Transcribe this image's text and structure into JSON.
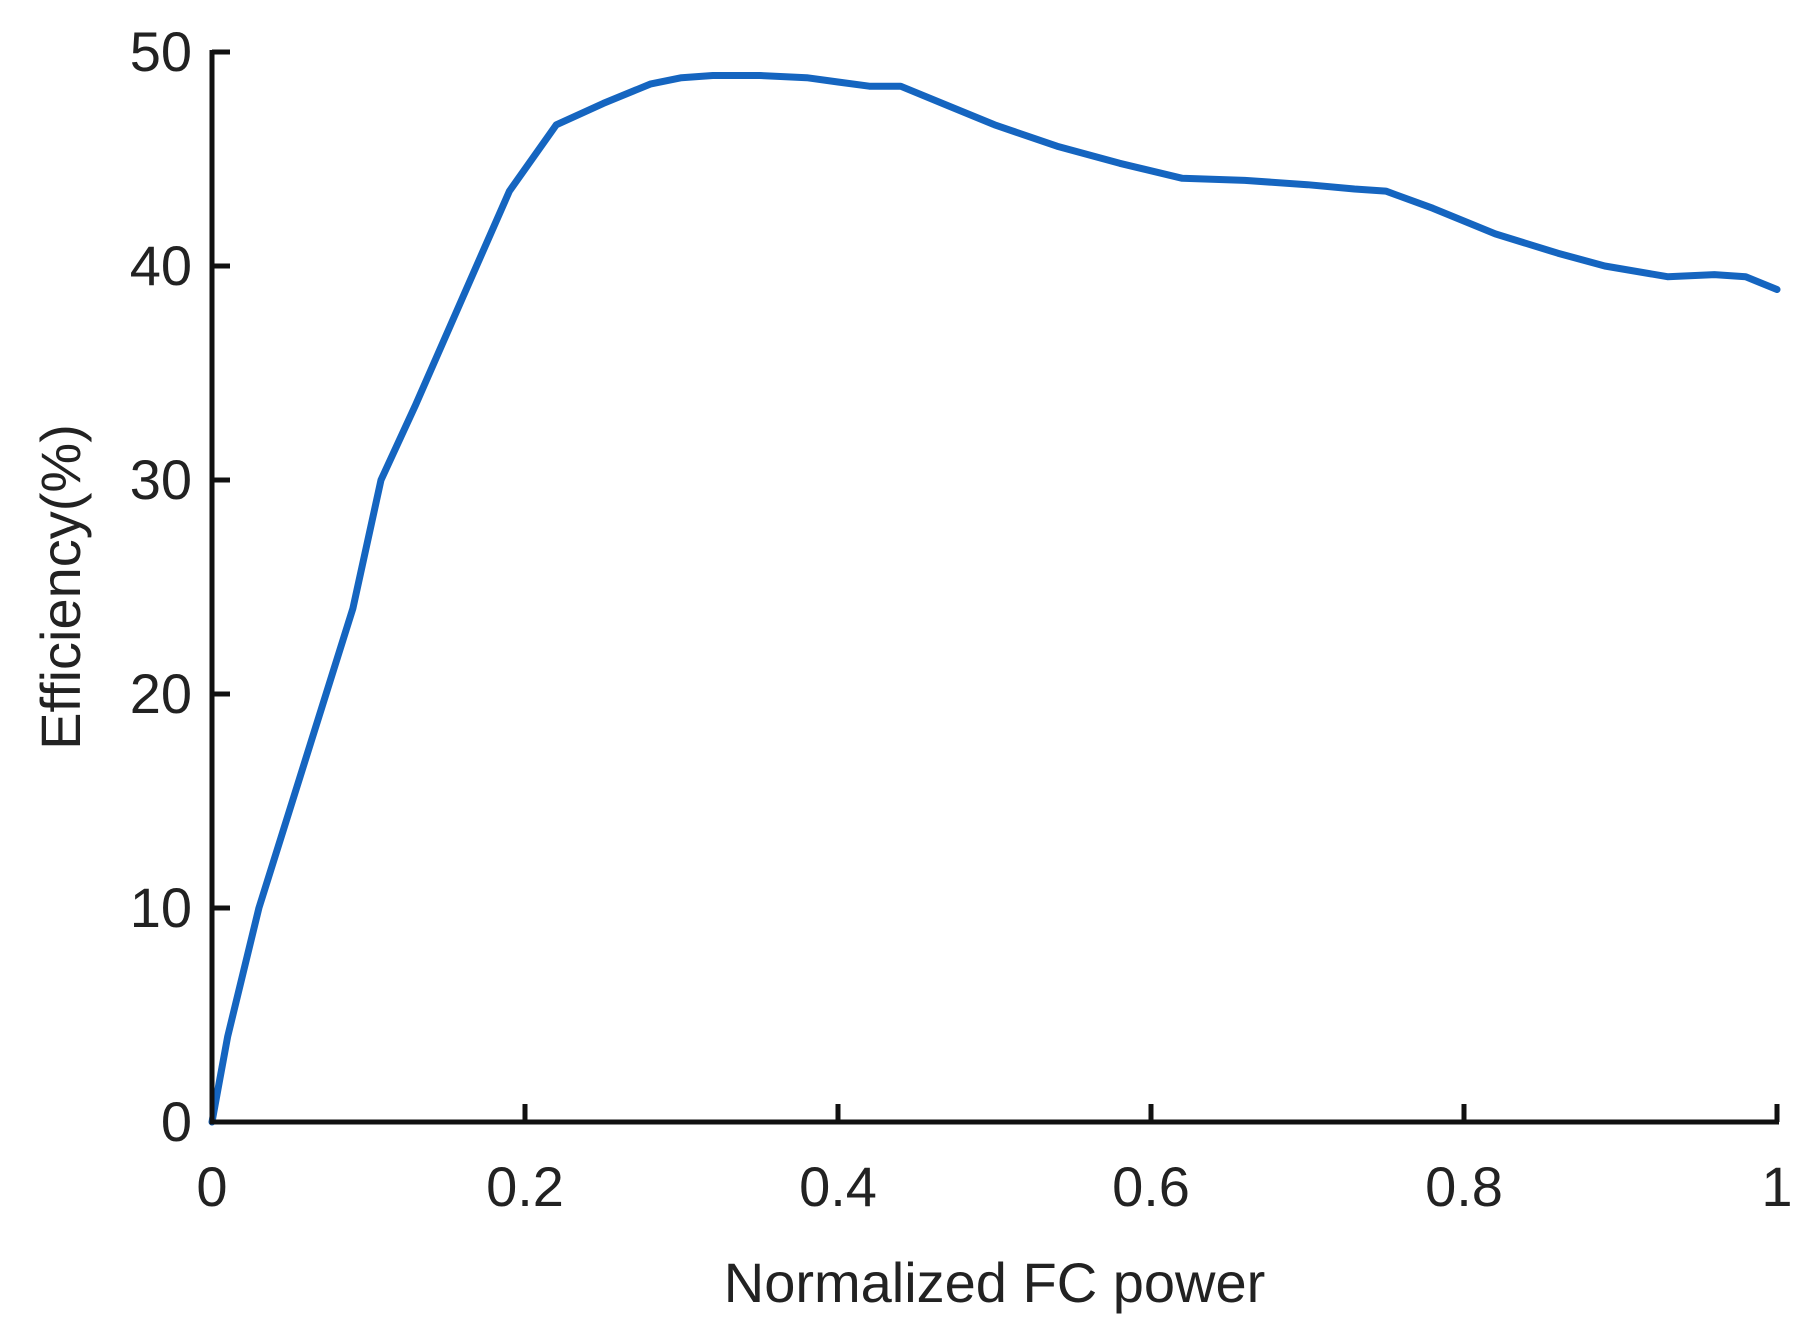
{
  "chart_data": {
    "type": "line",
    "title": "",
    "xlabel": "Normalized FC power",
    "ylabel": "Efficiency(%)",
    "xlim": [
      0,
      1
    ],
    "ylim": [
      0,
      50
    ],
    "xticks": [
      0,
      0.2,
      0.4,
      0.6,
      0.8,
      1
    ],
    "xtick_labels": [
      "0",
      "0.2",
      "0.4",
      "0.6",
      "0.8",
      "1"
    ],
    "yticks": [
      0,
      10,
      20,
      30,
      40,
      50
    ],
    "ytick_labels": [
      "0",
      "10",
      "20",
      "30",
      "40",
      "50"
    ],
    "grid": false,
    "legend": "none",
    "series": [
      {
        "color": "#1565c0",
        "x": [
          0,
          0.005,
          0.01,
          0.03,
          0.06,
          0.09,
          0.108,
          0.13,
          0.16,
          0.19,
          0.22,
          0.25,
          0.28,
          0.3,
          0.32,
          0.35,
          0.38,
          0.4,
          0.42,
          0.44,
          0.47,
          0.5,
          0.54,
          0.58,
          0.62,
          0.66,
          0.7,
          0.73,
          0.75,
          0.78,
          0.82,
          0.86,
          0.89,
          0.93,
          0.96,
          0.98,
          0.99,
          1.0
        ],
        "y": [
          0,
          2,
          4,
          10,
          17,
          24,
          30,
          33.5,
          38.5,
          43.5,
          46.6,
          47.6,
          48.5,
          48.8,
          48.9,
          48.9,
          48.8,
          48.6,
          48.4,
          48.4,
          47.5,
          46.6,
          45.6,
          44.8,
          44.1,
          44.0,
          43.8,
          43.6,
          43.5,
          42.7,
          41.5,
          40.6,
          40.0,
          39.5,
          39.6,
          39.5,
          39.2,
          38.9
        ]
      }
    ]
  }
}
